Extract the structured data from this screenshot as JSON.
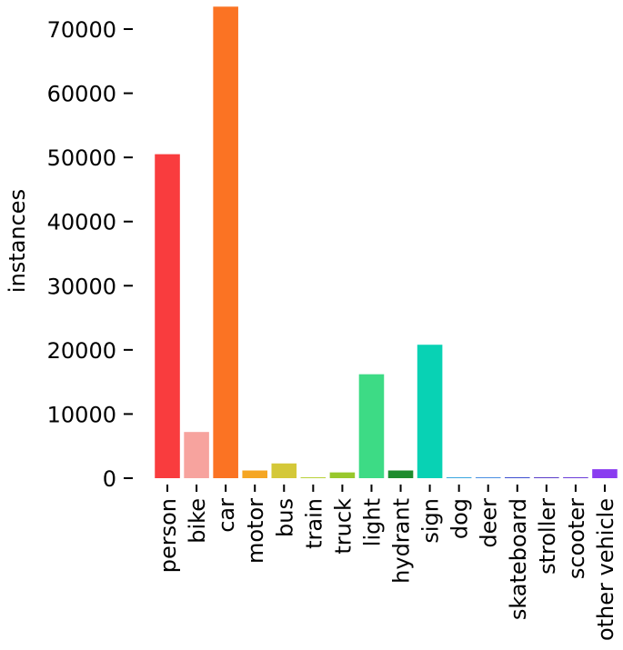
{
  "chart_data": {
    "type": "bar",
    "title": "",
    "xlabel": "",
    "ylabel": "instances",
    "ylim": [
      0,
      74000
    ],
    "yticks": [
      0,
      10000,
      20000,
      30000,
      40000,
      50000,
      60000,
      70000
    ],
    "grid": false,
    "categories": [
      "person",
      "bike",
      "car",
      "motor",
      "bus",
      "train",
      "truck",
      "light",
      "hydrant",
      "sign",
      "dog",
      "deer",
      "skateboard",
      "stroller",
      "scooter",
      "other vehicle"
    ],
    "values": [
      50500,
      7200,
      73500,
      1200,
      2300,
      100,
      900,
      16200,
      1200,
      20800,
      50,
      50,
      80,
      50,
      100,
      1400
    ],
    "colors": [
      "#f93c3e",
      "#f7a39e",
      "#fb7323",
      "#f5a623",
      "#d4c838",
      "#b9d13a",
      "#98c82c",
      "#3ddb85",
      "#1e8c2e",
      "#08d2b4",
      "#3aa7e0",
      "#4a90e2",
      "#3e4fd0",
      "#5a3ec8",
      "#6b3dd9",
      "#8a3cf0"
    ]
  }
}
